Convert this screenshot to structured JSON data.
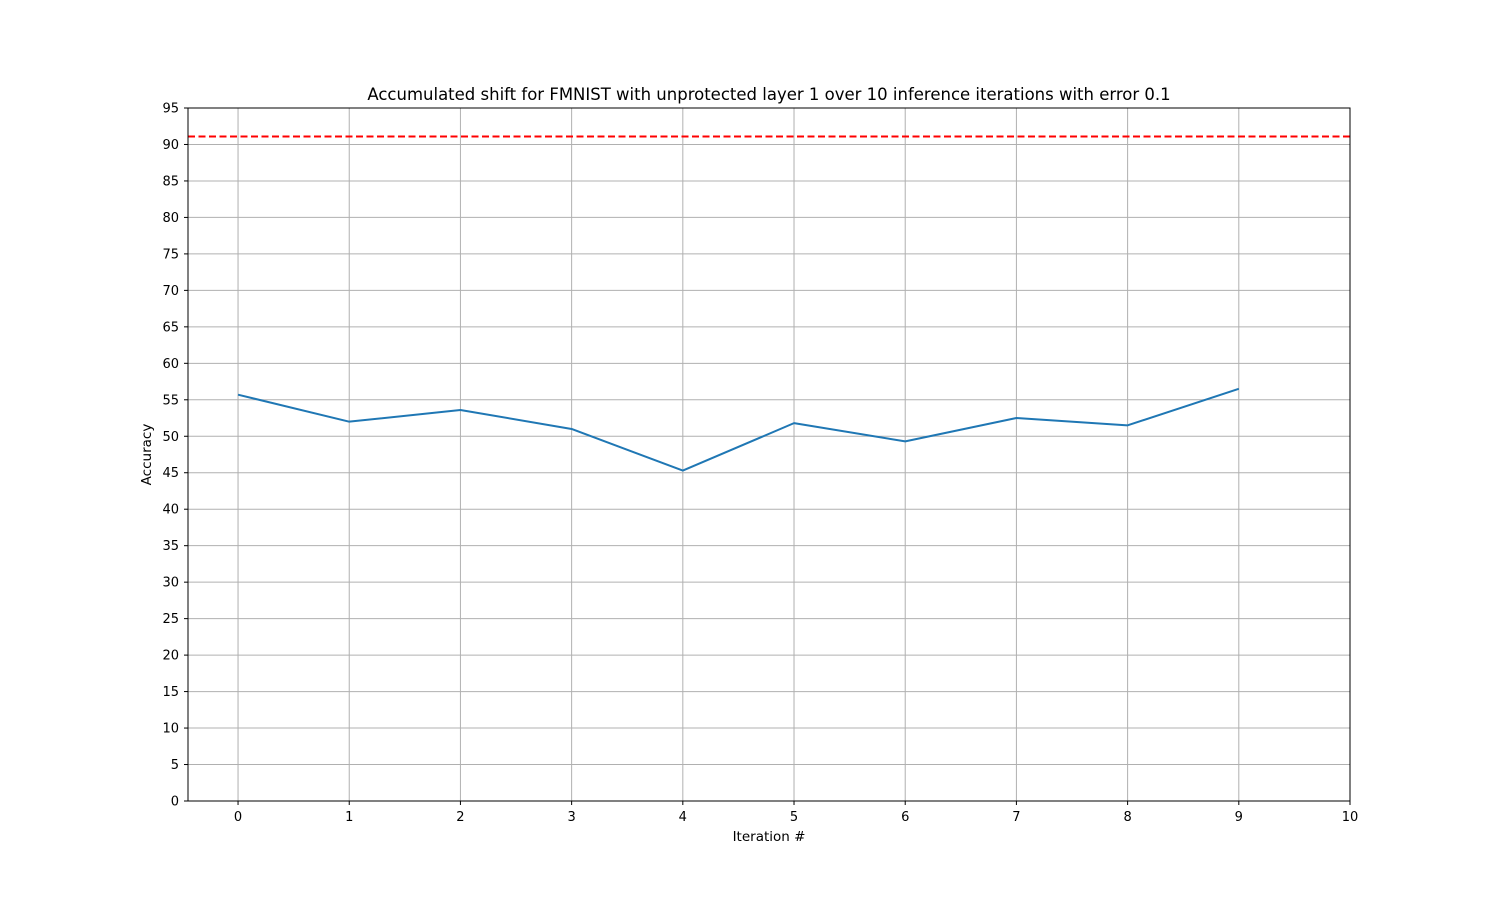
{
  "chart_data": {
    "type": "line",
    "title": "Accumulated shift for FMNIST with unprotected layer 1 over 10 inference iterations with error 0.1",
    "xlabel": "Iteration #",
    "ylabel": "Accuracy",
    "xlim": [
      -0.45,
      10
    ],
    "ylim": [
      0,
      95
    ],
    "xticks": [
      0,
      1,
      2,
      3,
      4,
      5,
      6,
      7,
      8,
      9,
      10
    ],
    "yticks": [
      0,
      5,
      10,
      15,
      20,
      25,
      30,
      35,
      40,
      45,
      50,
      55,
      60,
      65,
      70,
      75,
      80,
      85,
      90,
      95
    ],
    "grid": true,
    "series": [
      {
        "x": [
          0,
          1,
          2,
          3,
          4,
          5,
          6,
          7,
          8,
          9
        ],
        "values": [
          55.7,
          52.0,
          53.6,
          51.0,
          45.3,
          51.8,
          49.3,
          52.5,
          51.5,
          56.5
        ],
        "color": "#1f77b4",
        "style": "solid"
      }
    ],
    "reference_lines": [
      {
        "y": 91.1,
        "color": "#ff0000",
        "style": "dashed"
      }
    ]
  }
}
